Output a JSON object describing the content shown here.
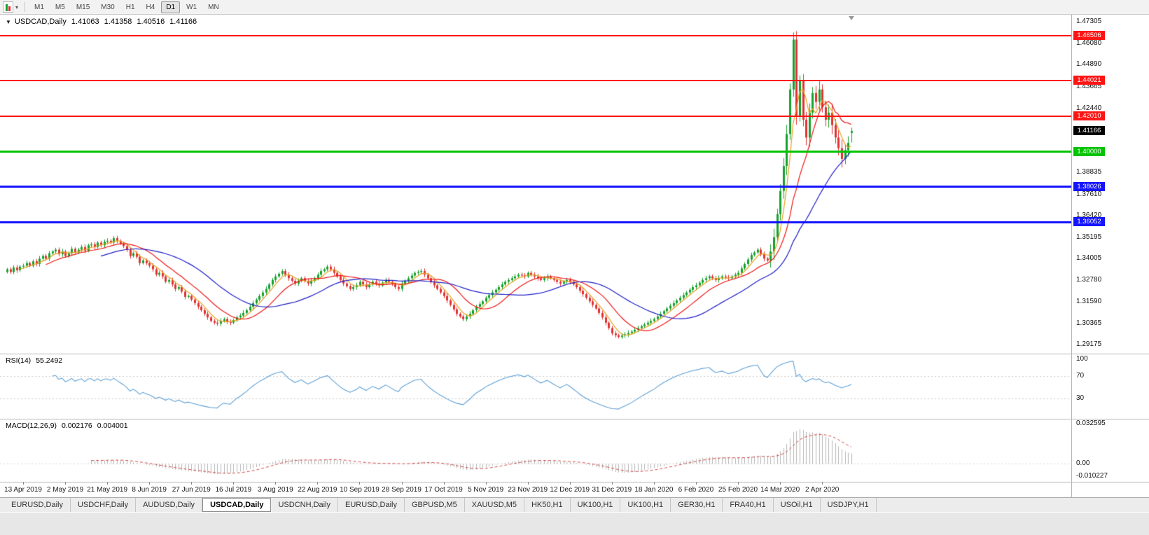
{
  "toolbar": {
    "timeframes": [
      "M1",
      "M5",
      "M15",
      "M30",
      "H1",
      "H4",
      "D1",
      "W1",
      "MN"
    ],
    "active_timeframe": "D1"
  },
  "icons": {
    "collapse": "▼",
    "toolbar_caret": "▾"
  },
  "chart": {
    "title": "USDCAD,Daily",
    "quote": {
      "open": "1.41063",
      "high": "1.41358",
      "low": "1.40516",
      "close": "1.41166"
    }
  },
  "rsi": {
    "name": "RSI(14)",
    "value": "55.2492",
    "levels": [
      "100",
      "70",
      "30"
    ],
    "color": "#5e9fd4"
  },
  "macd": {
    "name": "MACD(12,26,9)",
    "value1": "0.002176",
    "value2": "0.004001",
    "y_labels": [
      "0.032595",
      "0.00",
      "-0.010227"
    ],
    "histogram_color": "#b4b4b4",
    "signal_color": "#d24545"
  },
  "tabs": {
    "items": [
      "EURUSD,Daily",
      "USDCHF,Daily",
      "AUDUSD,Daily",
      "USDCAD,Daily",
      "USDCNH,Daily",
      "EURUSD,Daily",
      "GBPUSD,M5",
      "XAUUSD,M5",
      "HK50,H1",
      "UK100,H1",
      "UK100,H1",
      "GER30,H1",
      "FRA40,H1",
      "USOil,H1",
      "USDJPY,H1"
    ],
    "active_index": 3
  },
  "chart_data": {
    "type": "candlestick",
    "symbol": "USDCAD",
    "timeframe": "Daily",
    "candle_up_color": "#16a02c",
    "candle_down_color": "#e03232",
    "y_axis_ticks": [
      "1.47305",
      "1.46080",
      "1.44890",
      "1.43665",
      "1.42440",
      "1.38835",
      "1.37610",
      "1.36420",
      "1.35195",
      "1.34005",
      "1.32780",
      "1.31590",
      "1.30365",
      "1.29175"
    ],
    "x_labels": [
      "13 Apr 2019",
      "2 May 2019",
      "21 May 2019",
      "8 Jun 2019",
      "27 Jun 2019",
      "16 Jul 2019",
      "3 Aug 2019",
      "22 Aug 2019",
      "10 Sep 2019",
      "28 Sep 2019",
      "17 Oct 2019",
      "5 Nov 2019",
      "23 Nov 2019",
      "12 Dec 2019",
      "31 Dec 2019",
      "18 Jan 2020",
      "6 Feb 2020",
      "25 Feb 2020",
      "14 Mar 2020",
      "2 Apr 2020"
    ],
    "price_lines": [
      {
        "name": "resistance-1",
        "price": 1.46506,
        "label": "1.46506",
        "color": "#ff1414",
        "thickness": 2
      },
      {
        "name": "resistance-2",
        "price": 1.44021,
        "label": "1.44021",
        "color": "#ff1414",
        "thickness": 2
      },
      {
        "name": "resistance-3",
        "price": 1.4201,
        "label": "1.42010",
        "color": "#ff1414",
        "thickness": 2
      },
      {
        "name": "round-level",
        "price": 1.4,
        "label": "1.40000",
        "color": "#00c400",
        "thickness": 3
      },
      {
        "name": "support-1",
        "price": 1.38026,
        "label": "1.38026",
        "color": "#1414ff",
        "thickness": 3
      },
      {
        "name": "support-2",
        "price": 1.36052,
        "label": "1.36052",
        "color": "#1414ff",
        "thickness": 3
      }
    ],
    "bid_badge": {
      "price": 1.41166,
      "label": "1.41166",
      "color": "#000000"
    },
    "last_candle": {
      "open": 1.41063,
      "high": 1.41358,
      "low": 1.40516,
      "close": 1.41166
    },
    "moving_averages": [
      {
        "period": 5,
        "color": "#e8a01e"
      },
      {
        "period": 13,
        "color": "#f01414"
      },
      {
        "period": 30,
        "color": "#1e1ec8"
      }
    ],
    "closes": [
      1.334,
      1.3325,
      1.335,
      1.3335,
      1.3355,
      1.336,
      1.3375,
      1.336,
      1.3385,
      1.337,
      1.34,
      1.3415,
      1.34,
      1.343,
      1.344,
      1.345,
      1.3425,
      1.344,
      1.3415,
      1.343,
      1.3455,
      1.3435,
      1.345,
      1.3465,
      1.3445,
      1.3475,
      1.348,
      1.3465,
      1.349,
      1.3475,
      1.3495,
      1.35,
      1.349,
      1.3515,
      1.35,
      1.3485,
      1.347,
      1.345,
      1.3415,
      1.343,
      1.341,
      1.3375,
      1.339,
      1.3375,
      1.336,
      1.334,
      1.331,
      1.332,
      1.33,
      1.327,
      1.328,
      1.3255,
      1.323,
      1.324,
      1.3215,
      1.3185,
      1.319,
      1.317,
      1.315,
      1.313,
      1.311,
      1.309,
      1.307,
      1.305,
      1.304,
      1.3035,
      1.305,
      1.306,
      1.3045,
      1.304,
      1.3055,
      1.307,
      1.308,
      1.3095,
      1.311,
      1.313,
      1.315,
      1.317,
      1.319,
      1.321,
      1.323,
      1.3255,
      1.328,
      1.33,
      1.3315,
      1.333,
      1.331,
      1.329,
      1.3275,
      1.326,
      1.3275,
      1.329,
      1.3275,
      1.326,
      1.3275,
      1.329,
      1.331,
      1.333,
      1.334,
      1.3355,
      1.334,
      1.332,
      1.33,
      1.328,
      1.326,
      1.3245,
      1.323,
      1.324,
      1.325,
      1.327,
      1.3255,
      1.324,
      1.3255,
      1.327,
      1.326,
      1.325,
      1.3265,
      1.328,
      1.327,
      1.3255,
      1.324,
      1.323,
      1.326,
      1.3275,
      1.329,
      1.3305,
      1.332,
      1.3325,
      1.333,
      1.331,
      1.329,
      1.327,
      1.325,
      1.323,
      1.321,
      1.319,
      1.3165,
      1.314,
      1.3115,
      1.309,
      1.3075,
      1.306,
      1.3075,
      1.309,
      1.311,
      1.313,
      1.3145,
      1.316,
      1.318,
      1.3195,
      1.321,
      1.3225,
      1.324,
      1.3255,
      1.327,
      1.328,
      1.329,
      1.33,
      1.331,
      1.3305,
      1.33,
      1.332,
      1.331,
      1.33,
      1.329,
      1.328,
      1.329,
      1.33,
      1.329,
      1.328,
      1.327,
      1.326,
      1.327,
      1.328,
      1.327,
      1.3255,
      1.324,
      1.322,
      1.32,
      1.318,
      1.316,
      1.314,
      1.312,
      1.3095,
      1.307,
      1.304,
      1.301,
      1.298,
      1.297,
      1.296,
      1.2968,
      1.2975,
      1.2982,
      1.299,
      1.3,
      1.301,
      1.302,
      1.303,
      1.304,
      1.305,
      1.306,
      1.3075,
      1.309,
      1.3105,
      1.312,
      1.3135,
      1.315,
      1.3165,
      1.318,
      1.3195,
      1.321,
      1.3225,
      1.324,
      1.325,
      1.3265,
      1.328,
      1.329,
      1.33,
      1.329,
      1.328,
      1.329,
      1.33,
      1.3295,
      1.329,
      1.33,
      1.331,
      1.332,
      1.3345,
      1.337,
      1.3395,
      1.342,
      1.3435,
      1.345,
      1.3425,
      1.34,
      1.339,
      1.344,
      1.352,
      1.365,
      1.378,
      1.392,
      1.41,
      1.435,
      1.463,
      1.42,
      1.44,
      1.418,
      1.408,
      1.422,
      1.433,
      1.428,
      1.435,
      1.425,
      1.418,
      1.422,
      1.415,
      1.408,
      1.402,
      1.396,
      1.401,
      1.405,
      1.41166
    ]
  }
}
